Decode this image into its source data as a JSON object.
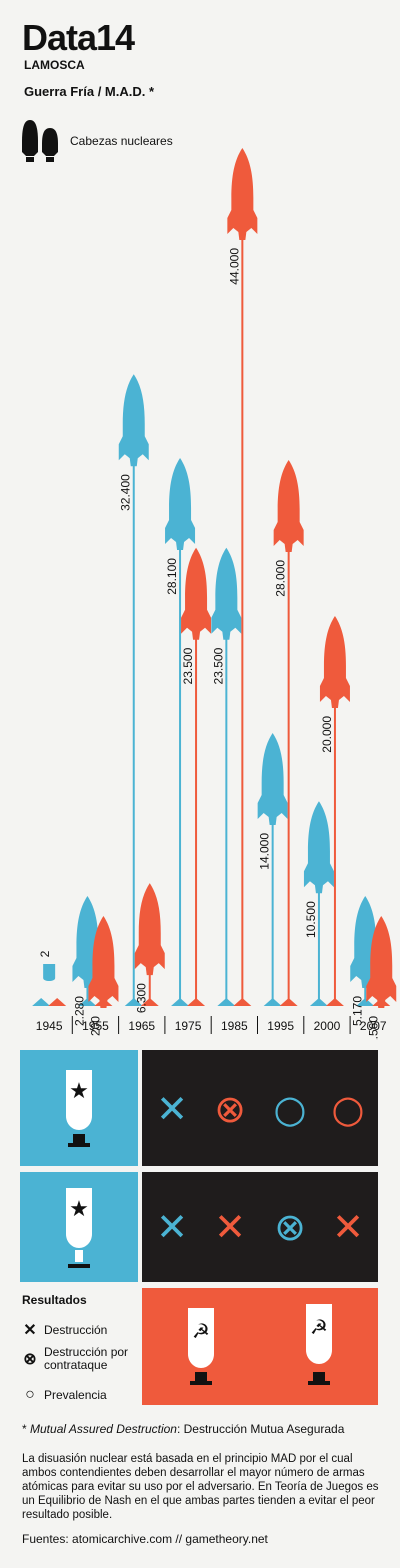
{
  "header": {
    "brand": "Data14",
    "publisher": "LAMOSCA",
    "title": "Guerra Fría / M.A.D. *",
    "legend_label": "Cabezas nucleares"
  },
  "colors": {
    "usa": "#4bb3d3",
    "ussr": "#ef5a3c",
    "dark": "#1f1c1c",
    "background": "#f4f4f2"
  },
  "chart_data": {
    "type": "bar",
    "categories": [
      "1945",
      "1955",
      "1965",
      "1975",
      "1985",
      "1995",
      "2000",
      "2007"
    ],
    "series": [
      {
        "color": "#4bb3d3",
        "values": [
          2,
          2280,
          32400,
          28100,
          23500,
          14000,
          10500,
          5170
        ]
      },
      {
        "color": "#ef5a3c",
        "values": [
          null,
          200,
          6300,
          23500,
          44000,
          28000,
          20000,
          1560
        ]
      }
    ],
    "value_labels": {
      "blue": [
        "2",
        "2.280",
        "32.400",
        "28.100",
        "23.500",
        "14.000",
        "10.500",
        "5.170"
      ],
      "red": [
        "",
        "200",
        "6.300",
        "23.500",
        "44.000",
        "28.000",
        "20.000",
        "1.560"
      ]
    },
    "marker": "rocket",
    "legend": "top-left"
  },
  "results": {
    "title": "Resultados",
    "items": [
      {
        "symbol": "✕",
        "label": "Destrucción"
      },
      {
        "symbol": "⊗",
        "label": "Destrucción por contrataque"
      },
      {
        "symbol": "○",
        "label": "Prevalencia"
      }
    ],
    "matrix": {
      "row1": [
        "✕",
        "⊗",
        "○",
        "○"
      ],
      "row2": [
        "✕",
        "✕",
        "⊗",
        "✕"
      ]
    },
    "icons": [
      "star-bomb-icon",
      "hammer-sickle-bomb-icon"
    ]
  },
  "footnote": {
    "label": "Mutual Assured Destruction",
    "text": ": Destrucción Mutua Asegurada"
  },
  "body_text": "La disuasión nuclear está basada en el principio MAD por el cual ambos contendientes deben desarrollar el mayor número de armas atómicas para evitar su uso por el adversario. En Teoría de Juegos es un Equilibrio de Nash en el que ambas partes tienden a evitar el peor resultado posible.",
  "sources": "Fuentes: atomicarchive.com // gametheory.net"
}
